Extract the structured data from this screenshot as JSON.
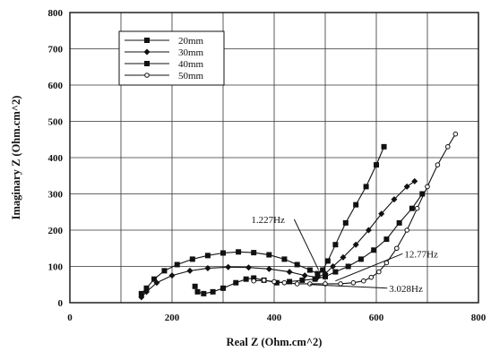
{
  "chart_data": {
    "type": "scatter",
    "xlabel": "Real  Z  (Ohm.cm^2)",
    "ylabel": "Imaginary  Z  (Ohm.cm^2)",
    "xlim": [
      0,
      800
    ],
    "ylim": [
      0,
      800
    ],
    "xticks": [
      "0",
      "200",
      "400",
      "600",
      "800"
    ],
    "yticks": [
      "0",
      "100",
      "200",
      "300",
      "400",
      "500",
      "600",
      "700",
      "800"
    ],
    "grid": true,
    "legend_position": "top-left",
    "series": [
      {
        "name": "20mm",
        "marker": "square",
        "x": [
          140,
          150,
          165,
          185,
          210,
          240,
          270,
          300,
          330,
          360,
          390,
          420,
          445,
          470,
          485,
          495,
          505,
          520,
          540,
          560,
          580,
          600,
          615
        ],
        "y": [
          25,
          40,
          65,
          88,
          105,
          120,
          130,
          137,
          140,
          138,
          132,
          120,
          105,
          90,
          80,
          90,
          115,
          160,
          220,
          270,
          320,
          380,
          430
        ]
      },
      {
        "name": "30mm",
        "marker": "diamond",
        "x": [
          140,
          150,
          170,
          200,
          235,
          270,
          310,
          350,
          390,
          430,
          460,
          485,
          500,
          515,
          535,
          560,
          585,
          610,
          635,
          660,
          675
        ],
        "y": [
          15,
          30,
          55,
          75,
          88,
          95,
          98,
          97,
          93,
          85,
          75,
          70,
          80,
          100,
          125,
          160,
          200,
          245,
          285,
          320,
          335
        ]
      },
      {
        "name": "40mm",
        "marker": "square",
        "x": [
          245,
          250,
          262,
          280,
          300,
          325,
          345,
          360,
          380,
          405,
          430,
          455,
          480,
          500,
          520,
          545,
          570,
          595,
          620,
          645,
          670,
          690
        ],
        "y": [
          45,
          30,
          25,
          30,
          40,
          55,
          65,
          68,
          62,
          55,
          58,
          62,
          65,
          72,
          85,
          100,
          120,
          145,
          175,
          220,
          260,
          300
        ]
      },
      {
        "name": "50mm",
        "marker": "circle",
        "x": [
          360,
          380,
          400,
          420,
          445,
          470,
          500,
          530,
          555,
          575,
          590,
          605,
          620,
          640,
          660,
          680,
          700,
          720,
          740,
          755
        ],
        "y": [
          60,
          62,
          58,
          55,
          52,
          52,
          52,
          52,
          55,
          60,
          70,
          85,
          110,
          150,
          200,
          260,
          320,
          380,
          430,
          465
        ]
      }
    ],
    "annotations": [
      {
        "text": "1.227Hz",
        "x": 355,
        "y": 230,
        "arrow_to": [
          487,
          90
        ]
      },
      {
        "text": "12.77Hz",
        "x": 655,
        "y": 135,
        "arrow_to": [
          520,
          60
        ]
      },
      {
        "text": "3.028Hz",
        "x": 625,
        "y": 40,
        "arrow_to": [
          470,
          50
        ]
      }
    ]
  }
}
